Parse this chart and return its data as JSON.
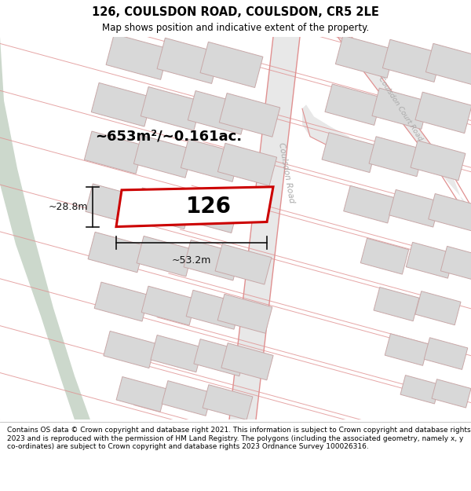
{
  "title_line1": "126, COULSDON ROAD, COULSDON, CR5 2LE",
  "title_line2": "Map shows position and indicative extent of the property.",
  "footer_text": "Contains OS data © Crown copyright and database right 2021. This information is subject to Crown copyright and database rights 2023 and is reproduced with the permission of HM Land Registry. The polygons (including the associated geometry, namely x, y co-ordinates) are subject to Crown copyright and database rights 2023 Ordnance Survey 100026316.",
  "map_bg": "#f2f2f0",
  "green_area_color": "#ccd8cc",
  "road_fill": "#e8e8e8",
  "building_fill": "#d8d8d8",
  "building_edge": "#c8a8a8",
  "parcel_line": "#e09090",
  "highlight_fill": "#ffffff",
  "highlight_edge": "#cc0000",
  "highlight_lw": 2.2,
  "road_label_color": "#aaaaaa",
  "dim_color": "#111111",
  "area_label": "~653m²/~0.161ac.",
  "plot_label": "126",
  "dim_width": "~53.2m",
  "dim_height": "~28.8m",
  "road_name1": "Coulsdon Road",
  "road_name2": "Coulsdon Court Road"
}
